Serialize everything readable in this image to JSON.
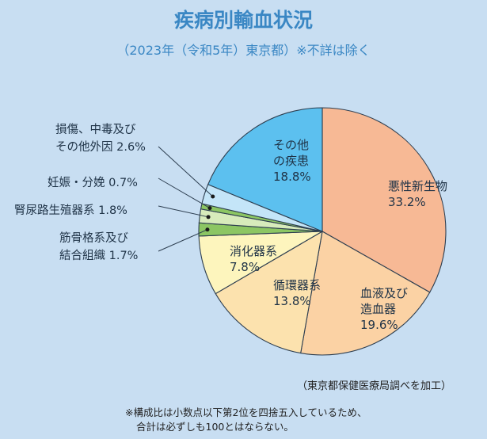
{
  "chart_data": {
    "type": "pie",
    "title": "疾病別輸血状況",
    "subtitle": "（2023年（令和5年）東京都）※不詳は除く",
    "slices": [
      {
        "label": "悪性新生物",
        "value": 33.2,
        "value_label": "33.2%",
        "color": "#f7b995"
      },
      {
        "label": "血液及び造血器",
        "value": 19.6,
        "value_label": "19.6%",
        "color": "#fbd2a4"
      },
      {
        "label": "循環器系",
        "value": 13.8,
        "value_label": "13.8%",
        "color": "#fce2ae"
      },
      {
        "label": "消化器系",
        "value": 7.8,
        "value_label": "7.8%",
        "color": "#fdf5bd"
      },
      {
        "label": "筋骨格系及び結合組織",
        "value": 1.7,
        "value_label": "1.7%",
        "color": "#8cc663"
      },
      {
        "label": "腎尿路生殖器系",
        "value": 1.8,
        "value_label": "1.8%",
        "color": "#d7ebbb"
      },
      {
        "label": "妊娠・分娩",
        "value": 0.7,
        "value_label": "0.7%",
        "color": "#8cc663"
      },
      {
        "label": "損傷、中毒及びその他外因",
        "value": 2.6,
        "value_label": "2.6%",
        "color": "#c4e5f8"
      },
      {
        "label": "その他の疾患",
        "value": 18.8,
        "value_label": "18.8%",
        "color": "#5cc0ef"
      }
    ],
    "source": "（東京都保健医療局調べを加工）",
    "note": [
      "※構成比は小数点以下第2位を四捨五入しているため、",
      "合計は必ずしも100とはならない。"
    ]
  }
}
